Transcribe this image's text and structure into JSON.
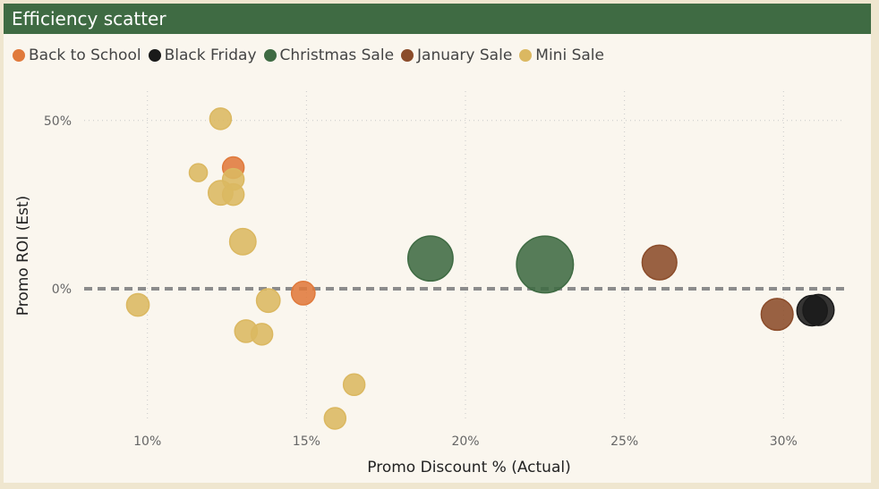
{
  "title": "Efficiency scatter",
  "colors": {
    "title_bar": "#3f6b43",
    "background": "#faf6ee",
    "outer": "#efe6cf",
    "zero_line": "#8c8c8c"
  },
  "chart_data": {
    "type": "scatter",
    "title": "",
    "xlabel": "Promo Discount % (Actual)",
    "ylabel": "Promo ROI (Est)",
    "xlim": [
      8,
      32
    ],
    "ylim": [
      -38,
      55
    ],
    "x_ticks": [
      {
        "value": 10,
        "label": "10%"
      },
      {
        "value": 15,
        "label": "15%"
      },
      {
        "value": 20,
        "label": "20%"
      },
      {
        "value": 25,
        "label": "25%"
      },
      {
        "value": 30,
        "label": "30%"
      }
    ],
    "y_ticks": [
      {
        "value": 50,
        "label": "50%"
      },
      {
        "value": 0,
        "label": "0%"
      }
    ],
    "grid": "dotted",
    "zero_line": true,
    "legend_position": "top-left",
    "series": [
      {
        "name": "Back to School",
        "color": "#e07a3c",
        "points": [
          {
            "x": 12.7,
            "y": 36,
            "size": 1.0
          },
          {
            "x": 14.9,
            "y": -1.3,
            "size": 1.2
          }
        ]
      },
      {
        "name": "Black Friday",
        "color": "#1a1a1a",
        "points": [
          {
            "x": 30.9,
            "y": -6.5,
            "size": 2.0
          },
          {
            "x": 31.1,
            "y": -6.3,
            "size": 2.1
          }
        ]
      },
      {
        "name": "Christmas Sale",
        "color": "#3f6b43",
        "points": [
          {
            "x": 18.9,
            "y": 9,
            "size": 4.4
          },
          {
            "x": 22.5,
            "y": 7.2,
            "size": 7.0
          }
        ]
      },
      {
        "name": "January Sale",
        "color": "#8b4c2a",
        "points": [
          {
            "x": 26.1,
            "y": 7.8,
            "size": 2.6
          },
          {
            "x": 29.8,
            "y": -7.6,
            "size": 2.2
          }
        ]
      },
      {
        "name": "Mini Sale",
        "color": "#dbb861",
        "points": [
          {
            "x": 12.3,
            "y": 50.5,
            "size": 1.0
          },
          {
            "x": 11.6,
            "y": 34.5,
            "size": 0.7
          },
          {
            "x": 12.7,
            "y": 32.5,
            "size": 1.0
          },
          {
            "x": 12.3,
            "y": 28.5,
            "size": 1.3
          },
          {
            "x": 12.7,
            "y": 28,
            "size": 1.0
          },
          {
            "x": 13,
            "y": 14,
            "size": 1.5
          },
          {
            "x": 9.7,
            "y": -4.8,
            "size": 1.1
          },
          {
            "x": 13.8,
            "y": -3.5,
            "size": 1.2
          },
          {
            "x": 13.1,
            "y": -12.6,
            "size": 1.1
          },
          {
            "x": 13.6,
            "y": -13.5,
            "size": 1.0
          },
          {
            "x": 16.5,
            "y": -28.5,
            "size": 1.0
          },
          {
            "x": 15.9,
            "y": -38.5,
            "size": 1.0
          }
        ]
      }
    ]
  }
}
